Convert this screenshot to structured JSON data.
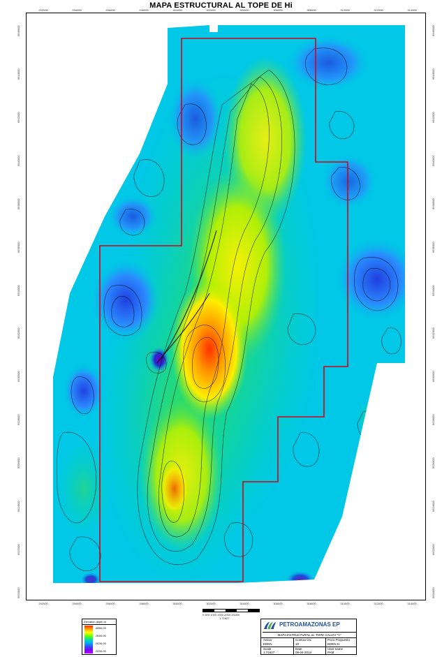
{
  "title": "MAPA ESTRUCTURAL AL TOPE DE Hi",
  "axes": {
    "x_ticks": [
      "292000",
      "294000",
      "296000",
      "298000",
      "300000",
      "302000",
      "304000",
      "306000",
      "308000",
      "310000",
      "312000",
      "314000"
    ],
    "y_ticks": [
      "9946000",
      "9944000",
      "9942000",
      "9940000",
      "9938000",
      "9936000",
      "9934000",
      "9932000",
      "9930000",
      "9928000",
      "9926000",
      "9924000",
      "9922000",
      "9920000"
    ]
  },
  "scale": {
    "label": "0  500 1000 1500 2000 2500m",
    "ratio": "1:71627"
  },
  "legend": {
    "title": "Elevation depth m",
    "entries": [
      "-8900.00",
      "-9000.00",
      "-9100.00",
      "-9200.00"
    ]
  },
  "title_block": {
    "company": "PETROAMAZONAS EP",
    "map_title": "MAPA ESTRUCTURAL AL TOPE CALIZA \"A\"",
    "fields": [
      {
        "label": "Activo",
        "value": "EDEN"
      },
      {
        "label": "Contour inc",
        "value": "10"
      },
      {
        "label": "Pozo Propuesto",
        "value": "EDEN-H"
      },
      {
        "label": "Scale",
        "value": "1:71627"
      },
      {
        "label": "Date",
        "value": "09-04-2013"
      },
      {
        "label": "User name",
        "value": "PAM"
      }
    ]
  },
  "colors": {
    "boundary": "#d0021b",
    "map_bg": "#00c8e6",
    "logo_blue": "#1f4fa0",
    "logo_green": "#4caf50"
  }
}
